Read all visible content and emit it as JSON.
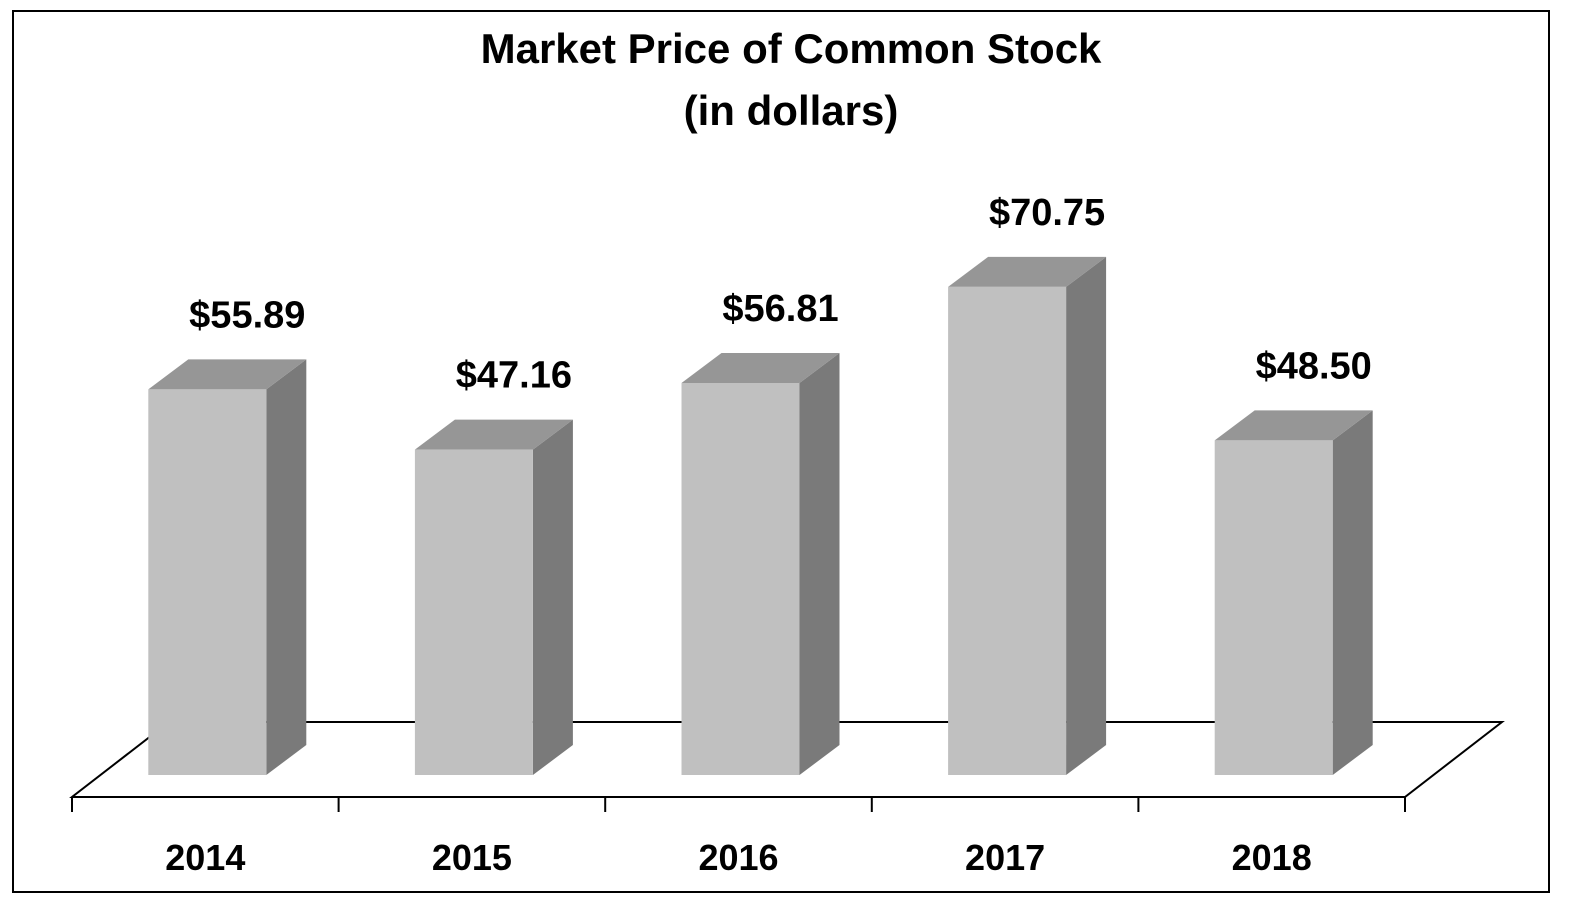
{
  "chart_data": {
    "type": "bar",
    "title": "Market Price of Common Stock",
    "subtitle": "(in dollars)",
    "categories": [
      "2014",
      "2015",
      "2016",
      "2017",
      "2018"
    ],
    "values": [
      55.89,
      47.16,
      56.81,
      70.75,
      48.5
    ],
    "data_labels": [
      "$55.89",
      "$47.16",
      "$56.81",
      "$70.75",
      "$48.50"
    ],
    "xlabel": "",
    "ylabel": "",
    "ylim": [
      0,
      80
    ],
    "grid": false,
    "legend": "none",
    "style": "3d-column",
    "colors": {
      "bar_front": "#c0c0c0",
      "bar_top": "#969696",
      "bar_side": "#7a7a7a",
      "axis": "#000000"
    }
  }
}
